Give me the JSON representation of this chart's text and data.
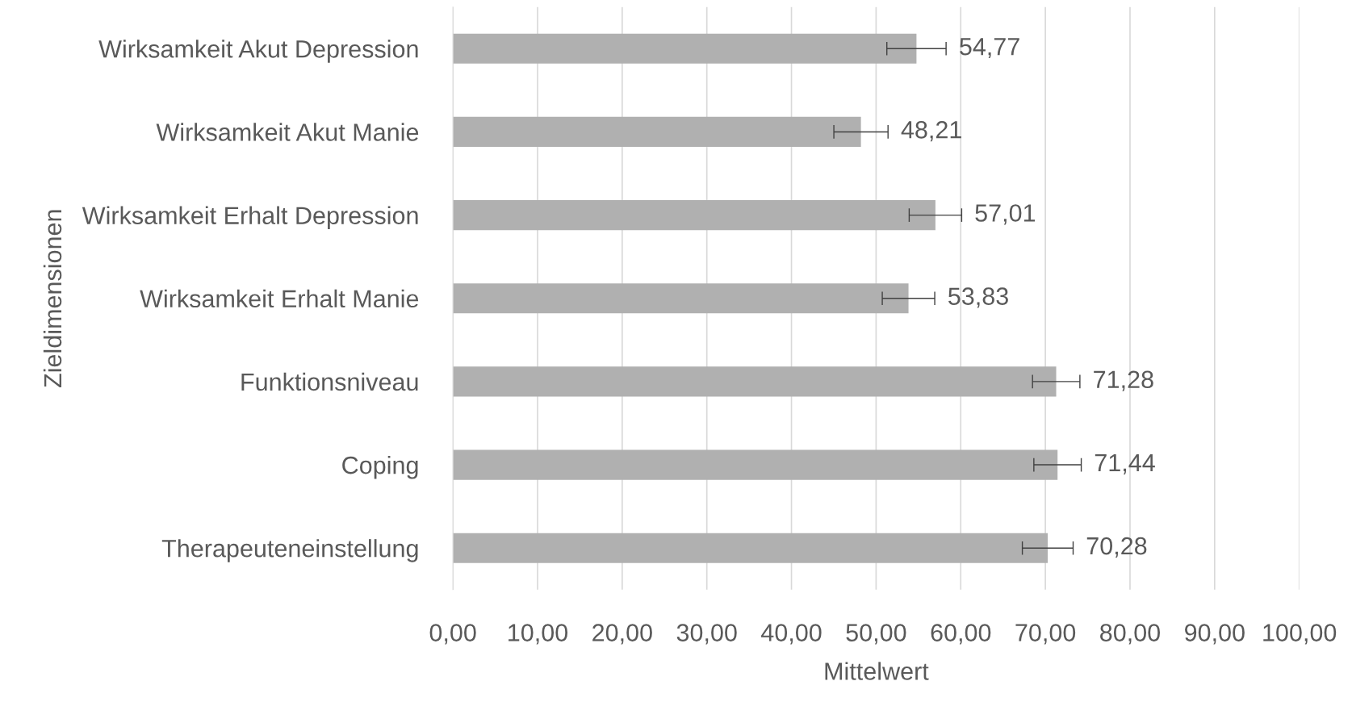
{
  "chart_data": {
    "type": "bar",
    "orientation": "horizontal",
    "categories": [
      "Wirksamkeit Akut Depression",
      "Wirksamkeit Akut Manie",
      "Wirksamkeit Erhalt Depression",
      "Wirksamkeit Erhalt Manie",
      "Funktionsniveau",
      "Coping",
      "Therapeuteneinstellung"
    ],
    "values": [
      54.77,
      48.21,
      57.01,
      53.83,
      71.28,
      71.44,
      70.28
    ],
    "errors": [
      3.5,
      3.2,
      3.1,
      3.1,
      2.8,
      2.8,
      3.0
    ],
    "value_labels": [
      "54,77",
      "48,21",
      "57,01",
      "53,83",
      "71,28",
      "71,44",
      "70,28"
    ],
    "color": "#b0b0b0",
    "xlabel": "Mittelwert",
    "ylabel": "Zieldimensionen",
    "xlim": [
      0,
      100
    ],
    "xticks": [
      {
        "value": 0,
        "label": "0,00"
      },
      {
        "value": 10,
        "label": "10,00"
      },
      {
        "value": 20,
        "label": "20,00"
      },
      {
        "value": 30,
        "label": "30,00"
      },
      {
        "value": 40,
        "label": "40,00"
      },
      {
        "value": 50,
        "label": "50,00"
      },
      {
        "value": 60,
        "label": "60,00"
      },
      {
        "value": 70,
        "label": "70,00"
      },
      {
        "value": 80,
        "label": "80,00"
      },
      {
        "value": 90,
        "label": "90,00"
      },
      {
        "value": 100,
        "label": "100,00"
      }
    ],
    "grid": "x"
  }
}
